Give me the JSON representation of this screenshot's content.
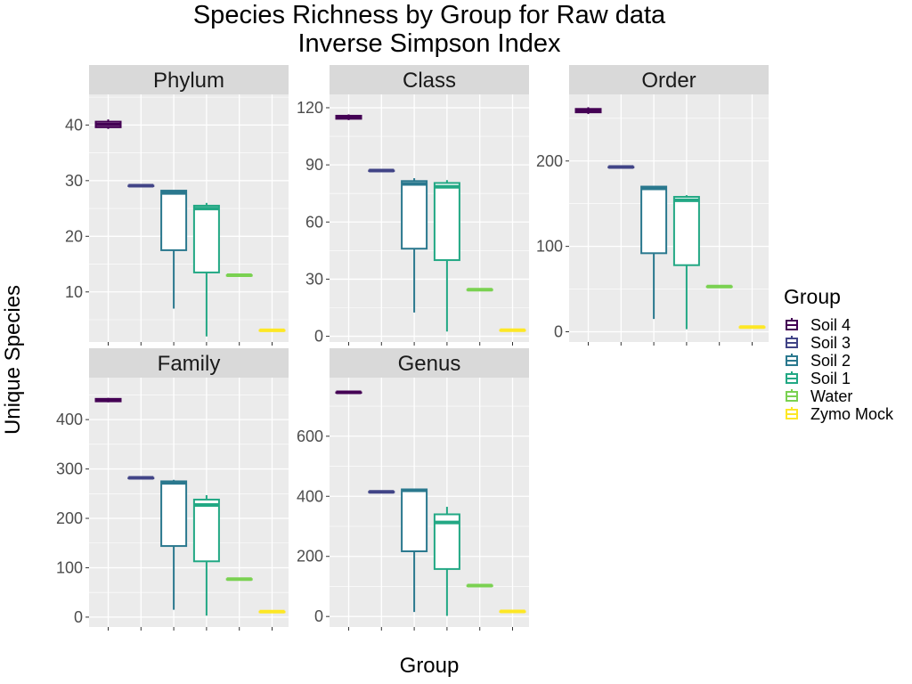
{
  "title_line1": "Species Richness by Group for Raw data",
  "title_line2": "Inverse Simpson Index",
  "legend_title": "Group",
  "colors": {
    "panel_bg": "#ebebeb",
    "strip_bg": "#d9d9d9",
    "grid": "#ffffff",
    "box_fill": "#ffffff",
    "series": [
      "#440154",
      "#414487",
      "#2a788e",
      "#22a884",
      "#7ad151",
      "#fde725"
    ]
  },
  "chart_data": {
    "type": "box",
    "title": "Species Richness by Group for Raw data\nInverse Simpson Index",
    "xlabel": "Group",
    "ylabel": "Unique Species",
    "legend": {
      "title": "Group",
      "position": "right"
    },
    "grid": true,
    "categories": [
      "Soil 4",
      "Soil 3",
      "Soil 2",
      "Soil 1",
      "Water",
      "Zymo Mock"
    ],
    "panels": [
      {
        "name": "Phylum",
        "ylim": [
          1,
          45.5
        ],
        "yticks": [
          10,
          20,
          30,
          40
        ],
        "boxes": [
          {
            "group": "Soil 4",
            "min": 39.3,
            "q1": 39.6,
            "median": 40.1,
            "q3": 40.6,
            "max": 41.0
          },
          {
            "group": "Soil 3",
            "min": 29.1,
            "q1": 29.1,
            "median": 29.1,
            "q3": 29.1,
            "max": 29.1
          },
          {
            "group": "Soil 2",
            "min": 7.0,
            "q1": 17.5,
            "median": 27.8,
            "q3": 28.2,
            "max": 28.2
          },
          {
            "group": "Soil 1",
            "min": 2.0,
            "q1": 13.5,
            "median": 25.0,
            "q3": 25.5,
            "max": 26.0
          },
          {
            "group": "Water",
            "min": 13.0,
            "q1": 13.0,
            "median": 13.0,
            "q3": 13.0,
            "max": 13.0
          },
          {
            "group": "Zymo Mock",
            "min": 3.1,
            "q1": 3.1,
            "median": 3.1,
            "q3": 3.1,
            "max": 3.1
          }
        ]
      },
      {
        "name": "Class",
        "ylim": [
          -3,
          127
        ],
        "yticks": [
          0,
          30,
          60,
          90,
          120
        ],
        "boxes": [
          {
            "group": "Soil 4",
            "min": 113.5,
            "q1": 114.2,
            "median": 115.0,
            "q3": 115.8,
            "max": 116.5
          },
          {
            "group": "Soil 3",
            "min": 87.0,
            "q1": 87.0,
            "median": 87.0,
            "q3": 87.0,
            "max": 87.0
          },
          {
            "group": "Soil 2",
            "min": 12.5,
            "q1": 46.0,
            "median": 80.0,
            "q3": 81.5,
            "max": 83.0
          },
          {
            "group": "Soil 1",
            "min": 2.5,
            "q1": 40.0,
            "median": 78.5,
            "q3": 80.5,
            "max": 82.0
          },
          {
            "group": "Water",
            "min": 24.5,
            "q1": 24.5,
            "median": 24.5,
            "q3": 24.5,
            "max": 24.5
          },
          {
            "group": "Zymo Mock",
            "min": 3.2,
            "q1": 3.2,
            "median": 3.2,
            "q3": 3.2,
            "max": 3.2
          }
        ]
      },
      {
        "name": "Order",
        "ylim": [
          -12,
          278
        ],
        "yticks": [
          0,
          100,
          200
        ],
        "boxes": [
          {
            "group": "Soil 4",
            "min": 255,
            "q1": 257,
            "median": 259,
            "q3": 261,
            "max": 263
          },
          {
            "group": "Soil 3",
            "min": 193,
            "q1": 193,
            "median": 193,
            "q3": 193,
            "max": 193
          },
          {
            "group": "Soil 2",
            "min": 15,
            "q1": 92,
            "median": 168,
            "q3": 170,
            "max": 170
          },
          {
            "group": "Soil 1",
            "min": 3,
            "q1": 78,
            "median": 154,
            "q3": 158,
            "max": 160
          },
          {
            "group": "Water",
            "min": 53,
            "q1": 53,
            "median": 53,
            "q3": 53,
            "max": 53
          },
          {
            "group": "Zymo Mock",
            "min": 5.5,
            "q1": 5.5,
            "median": 5.5,
            "q3": 5.5,
            "max": 5.5
          }
        ]
      },
      {
        "name": "Family",
        "ylim": [
          -20,
          485
        ],
        "yticks": [
          0,
          100,
          200,
          300,
          400
        ],
        "boxes": [
          {
            "group": "Soil 4",
            "min": 435,
            "q1": 437,
            "median": 440,
            "q3": 442,
            "max": 444
          },
          {
            "group": "Soil 3",
            "min": 282,
            "q1": 282,
            "median": 282,
            "q3": 282,
            "max": 282
          },
          {
            "group": "Soil 2",
            "min": 15,
            "q1": 144,
            "median": 272,
            "q3": 275,
            "max": 278
          },
          {
            "group": "Soil 1",
            "min": 3,
            "q1": 113,
            "median": 227,
            "q3": 238,
            "max": 247
          },
          {
            "group": "Water",
            "min": 77,
            "q1": 77,
            "median": 77,
            "q3": 77,
            "max": 77
          },
          {
            "group": "Zymo Mock",
            "min": 11,
            "q1": 11,
            "median": 11,
            "q3": 11,
            "max": 11
          }
        ]
      },
      {
        "name": "Genus",
        "ylim": [
          -35,
          795
        ],
        "yticks": [
          0,
          200,
          400,
          600
        ],
        "boxes": [
          {
            "group": "Soil 4",
            "min": 746,
            "q1": 746,
            "median": 746,
            "q3": 746,
            "max": 746
          },
          {
            "group": "Soil 3",
            "min": 415,
            "q1": 415,
            "median": 415,
            "q3": 415,
            "max": 415
          },
          {
            "group": "Soil 2",
            "min": 15,
            "q1": 217,
            "median": 420,
            "q3": 423,
            "max": 425
          },
          {
            "group": "Soil 1",
            "min": 2,
            "q1": 158,
            "median": 313,
            "q3": 340,
            "max": 365
          },
          {
            "group": "Water",
            "min": 103,
            "q1": 103,
            "median": 103,
            "q3": 103,
            "max": 103
          },
          {
            "group": "Zymo Mock",
            "min": 17,
            "q1": 17,
            "median": 17,
            "q3": 17,
            "max": 17
          }
        ]
      }
    ]
  }
}
